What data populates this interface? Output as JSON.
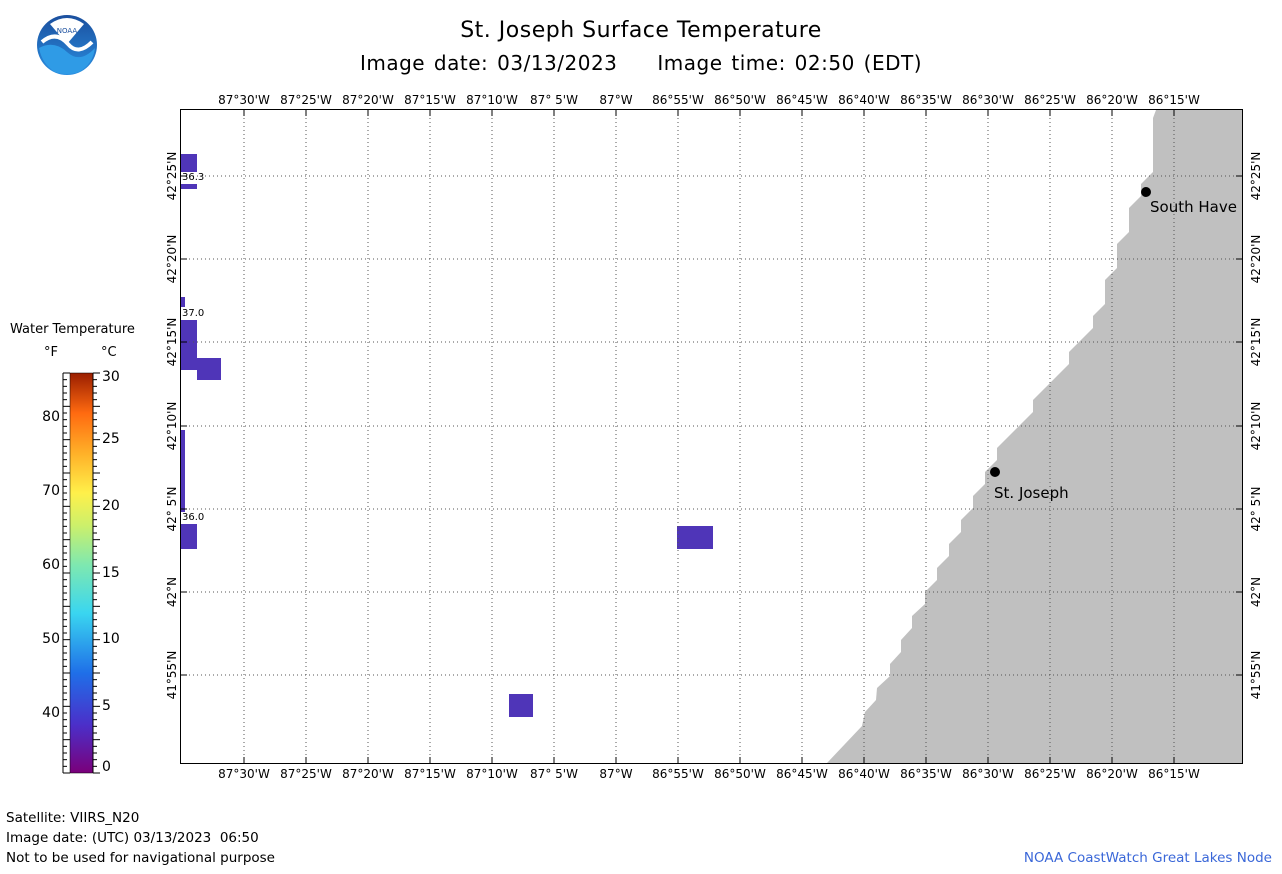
{
  "header": {
    "title": "St. Joseph Surface Temperature",
    "date_label": "Image date: 03/13/2023",
    "time_label": "Image time: 02:50 (EDT)"
  },
  "logo": {
    "text": "NOAA"
  },
  "map": {
    "lon_labels": [
      "87°30'W",
      "87°25'W",
      "87°20'W",
      "87°15'W",
      "87°10'W",
      "87° 5'W",
      "87°W",
      "86°55'W",
      "86°50'W",
      "86°45'W",
      "86°40'W",
      "86°35'W",
      "86°30'W",
      "86°25'W",
      "86°20'W",
      "86°15'W"
    ],
    "lat_labels": [
      "42°25'N",
      "42°20'N",
      "42°15'N",
      "42°10'N",
      "42° 5'N",
      "42°N",
      "41°55'N"
    ],
    "cities": [
      {
        "name": "South Have"
      },
      {
        "name": "St. Joseph"
      }
    ],
    "temp_labels": [
      "36.3",
      "37.0",
      "36.0"
    ],
    "water_color": "#4f35b8",
    "land_color": "#c0c0c0"
  },
  "legend": {
    "title": "Water Temperature",
    "unit_f": "°F",
    "unit_c": "°C",
    "f_ticks": [
      "80",
      "70",
      "60",
      "50",
      "40"
    ],
    "c_ticks": [
      "30",
      "25",
      "20",
      "15",
      "10",
      "5",
      "0"
    ]
  },
  "footer": {
    "satellite": "Satellite: VIIRS_N20",
    "utc_date": "Image date: (UTC) 03/13/2023  06:50",
    "disclaimer": "Not to be used for navigational purpose",
    "credit": "NOAA CoastWatch Great Lakes Node"
  }
}
